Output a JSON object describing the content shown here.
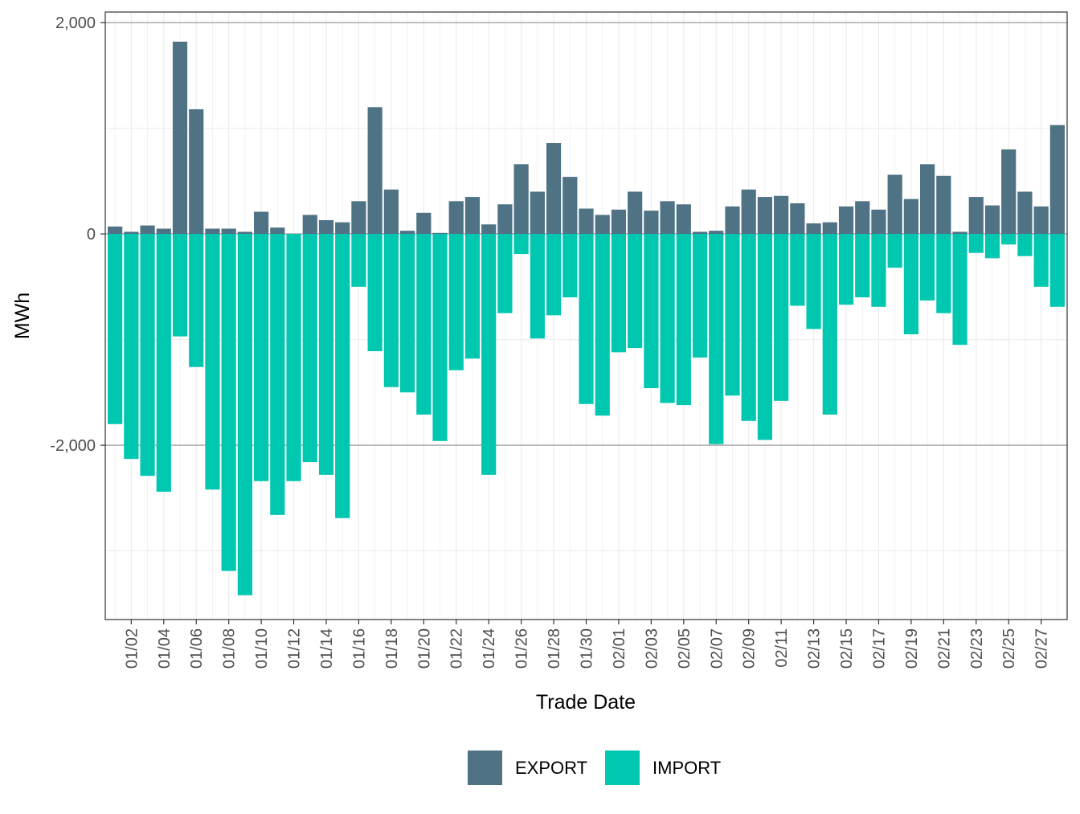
{
  "chart_data": {
    "type": "bar",
    "stacked_diverging": true,
    "xlabel": "Trade Date",
    "ylabel": "MWh",
    "ylim": [
      -3650,
      2100
    ],
    "yticks": [
      -2000,
      0,
      2000
    ],
    "ytick_labels": [
      "-2,000",
      "0",
      "2,000"
    ],
    "minor_yticks": [
      -3000,
      -1000,
      1000
    ],
    "categories": [
      "01/01",
      "01/02",
      "01/03",
      "01/04",
      "01/05",
      "01/06",
      "01/07",
      "01/08",
      "01/09",
      "01/10",
      "01/11",
      "01/12",
      "01/13",
      "01/14",
      "01/15",
      "01/16",
      "01/17",
      "01/18",
      "01/19",
      "01/20",
      "01/21",
      "01/22",
      "01/23",
      "01/24",
      "01/25",
      "01/26",
      "01/27",
      "01/28",
      "01/29",
      "01/30",
      "01/31",
      "02/01",
      "02/02",
      "02/03",
      "02/04",
      "02/05",
      "02/06",
      "02/07",
      "02/08",
      "02/09",
      "02/10",
      "02/11",
      "02/12",
      "02/13",
      "02/14",
      "02/15",
      "02/16",
      "02/17",
      "02/18",
      "02/19",
      "02/20",
      "02/21",
      "02/22",
      "02/23",
      "02/24",
      "02/25",
      "02/26",
      "02/27",
      "02/28"
    ],
    "xtick_labels": [
      "01/02",
      "01/04",
      "01/06",
      "01/08",
      "01/10",
      "01/12",
      "01/14",
      "01/16",
      "01/18",
      "01/20",
      "01/22",
      "01/24",
      "01/26",
      "01/28",
      "01/30",
      "02/01",
      "02/03",
      "02/05",
      "02/07",
      "02/09",
      "02/11",
      "02/13",
      "02/15",
      "02/17",
      "02/19",
      "02/21",
      "02/23",
      "02/25",
      "02/27"
    ],
    "series": [
      {
        "name": "EXPORT",
        "color": "#4f7285",
        "values": [
          70,
          20,
          80,
          50,
          1820,
          1180,
          50,
          50,
          20,
          210,
          60,
          0,
          180,
          130,
          110,
          310,
          1200,
          420,
          30,
          200,
          10,
          310,
          350,
          90,
          280,
          660,
          400,
          860,
          540,
          240,
          180,
          230,
          400,
          220,
          310,
          280,
          20,
          30,
          260,
          420,
          350,
          360,
          290,
          100,
          110,
          260,
          310,
          230,
          560,
          330,
          660,
          550,
          20,
          350,
          270,
          800,
          400,
          260,
          1030
        ]
      },
      {
        "name": "IMPORT",
        "color": "#00c7b0",
        "values": [
          -1800,
          -2130,
          -2290,
          -2440,
          -970,
          -1260,
          -2420,
          -3190,
          -3420,
          -2340,
          -2660,
          -2340,
          -2160,
          -2280,
          -2690,
          -500,
          -1110,
          -1450,
          -1500,
          -1710,
          -1960,
          -1290,
          -1180,
          -2280,
          -750,
          -190,
          -990,
          -770,
          -600,
          -1610,
          -1720,
          -1120,
          -1080,
          -1460,
          -1600,
          -1620,
          -1170,
          -1990,
          -1530,
          -1770,
          -1950,
          -1580,
          -680,
          -900,
          -1710,
          -670,
          -600,
          -690,
          -320,
          -950,
          -630,
          -750,
          -1050,
          -180,
          -230,
          -100,
          -210,
          -500,
          -690
        ]
      }
    ],
    "legend": {
      "position": "bottom",
      "entries": [
        "EXPORT",
        "IMPORT"
      ]
    }
  }
}
